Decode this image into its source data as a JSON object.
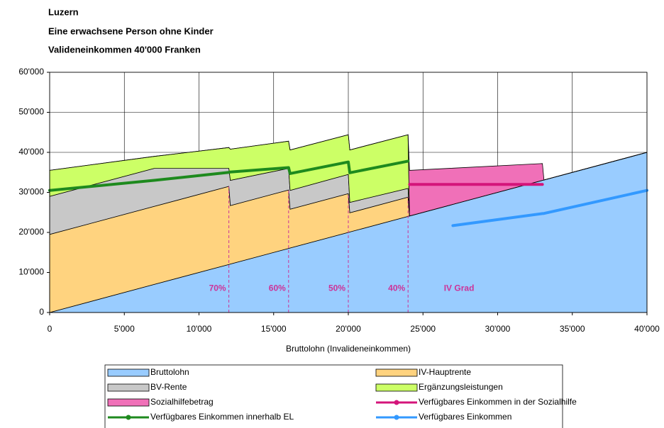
{
  "chart_data": {
    "type": "area",
    "title": [
      "Luzern",
      "Eine erwachsene Person ohne Kinder",
      "Valideneinkommen 40'000 Franken"
    ],
    "x_label": "Bruttolohn (Invalideneinkommen)",
    "stacked": true,
    "x": [
      0,
      7000,
      12000,
      12100,
      16000,
      16100,
      20000,
      20100,
      24000,
      24100,
      27000,
      33000,
      33100,
      40000
    ],
    "series": [
      {
        "name": "Bruttolohn",
        "type": "area",
        "color": "#99ccff",
        "values": [
          0,
          7000,
          12000,
          12100,
          16000,
          16100,
          20000,
          20100,
          24000,
          24100,
          27000,
          33000,
          33100,
          40000
        ]
      },
      {
        "name": "IV-Hauptrente",
        "type": "area",
        "color": "#ffd37f",
        "values": [
          19500,
          19500,
          19500,
          14600,
          14600,
          9700,
          9700,
          4800,
          4800,
          0,
          0,
          0,
          0,
          0
        ]
      },
      {
        "name": "BV-Rente",
        "type": "area",
        "color": "#c8c8c8",
        "values": [
          9500,
          9500,
          4500,
          6300,
          5400,
          4700,
          4800,
          2600,
          2200,
          0,
          0,
          0,
          0,
          0
        ]
      },
      {
        "name": "Ergänzungsleistungen",
        "type": "area",
        "color": "#ccff66",
        "values": [
          6500,
          3000,
          5200,
          7800,
          6800,
          10100,
          9900,
          13100,
          13400,
          0,
          0,
          0,
          0,
          0
        ]
      },
      {
        "name": "Sozialhilfebetrag",
        "type": "area",
        "color": "#f070b8",
        "values": [
          0,
          0,
          0,
          0,
          0,
          0,
          0,
          0,
          0,
          11400,
          9050,
          4200,
          0,
          0
        ]
      },
      {
        "name": "Verfügbares Einkommen in der Sozialhilfe",
        "type": "line",
        "color": "#d4147a",
        "values": [
          null,
          null,
          null,
          null,
          null,
          null,
          null,
          null,
          null,
          32000,
          32000,
          32000,
          null,
          null
        ]
      },
      {
        "name": "Verfügbares Einkommen innerhalb EL",
        "type": "line",
        "color": "#1e8a1e",
        "values": [
          30500,
          33000,
          35000,
          35100,
          36200,
          34700,
          37600,
          34900,
          37800,
          null,
          null,
          null,
          null,
          null
        ]
      },
      {
        "name": "Verfügbares Einkommen",
        "type": "line",
        "color": "#3399ff",
        "values": [
          null,
          null,
          null,
          null,
          null,
          null,
          null,
          null,
          null,
          null,
          21700,
          24700,
          24750,
          30500
        ]
      }
    ],
    "annotations": [
      {
        "text": "70%",
        "x": 12000,
        "y": 6000
      },
      {
        "text": "60%",
        "x": 16000,
        "y": 6000
      },
      {
        "text": "50%",
        "x": 20000,
        "y": 6000
      },
      {
        "text": "40%",
        "x": 24000,
        "y": 6000
      },
      {
        "text": "IV Grad",
        "x": 26400,
        "y": 6000
      }
    ],
    "xlim": [
      0,
      40000
    ],
    "xticks": [
      0,
      {
        "value": 5000,
        "label": "5'000"
      },
      {
        "value": 10000,
        "label": "10'000"
      },
      {
        "value": 15000,
        "label": "15'000"
      },
      {
        "value": 20000,
        "label": "20'000"
      },
      {
        "value": 25000,
        "label": "25'000"
      },
      {
        "value": 30000,
        "label": "30'000"
      },
      {
        "value": 35000,
        "label": "35'000"
      },
      {
        "value": 40000,
        "label": "40'000"
      }
    ],
    "ylim": [
      0,
      60000
    ],
    "yticks": [
      0,
      {
        "value": 10000,
        "label": "10'000"
      },
      {
        "value": 20000,
        "label": "20'000"
      },
      {
        "value": 30000,
        "label": "30'000"
      },
      {
        "value": 40000,
        "label": "40'000"
      },
      {
        "value": 50000,
        "label": "50'000"
      },
      {
        "value": 60000,
        "label": "60'000"
      }
    ],
    "grid": true,
    "legend": "bottom"
  }
}
